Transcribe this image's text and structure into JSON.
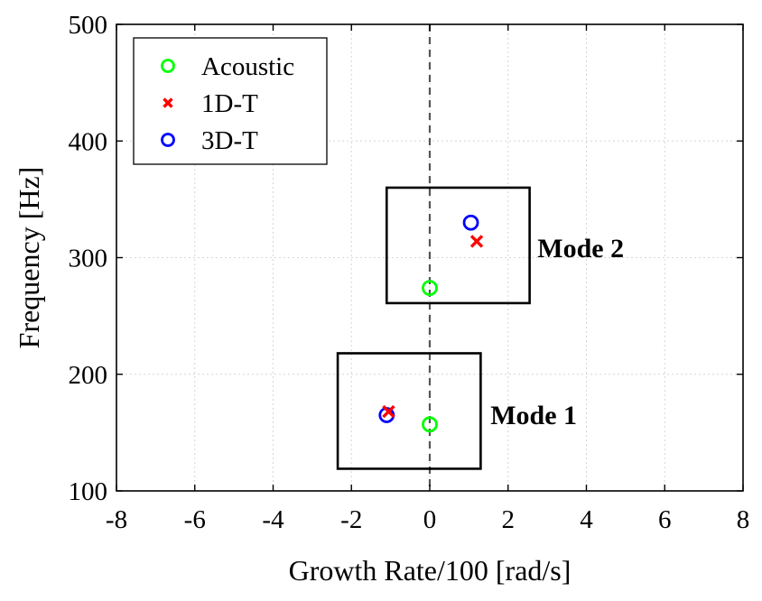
{
  "chart_data": {
    "type": "scatter",
    "title": "",
    "xlabel": "Growth Rate/100 [rad/s]",
    "ylabel": "Frequency [Hz]",
    "xlim": [
      -8,
      8
    ],
    "ylim": [
      100,
      500
    ],
    "xticks": [
      -8,
      -6,
      -4,
      -2,
      0,
      2,
      4,
      6,
      8
    ],
    "yticks": [
      100,
      200,
      300,
      400,
      500
    ],
    "grid": true,
    "legend_position": "top-left",
    "series": [
      {
        "name": "Acoustic",
        "marker": "circle",
        "color": "#00ff00",
        "x": [
          0,
          0
        ],
        "y": [
          157,
          274
        ]
      },
      {
        "name": "1D-T",
        "marker": "x",
        "color": "#ff0000",
        "x": [
          -1.05,
          1.2
        ],
        "y": [
          168,
          314
        ]
      },
      {
        "name": "3D-T",
        "marker": "circle",
        "color": "#0000ff",
        "x": [
          -1.1,
          1.05
        ],
        "y": [
          165,
          330
        ]
      }
    ],
    "annotations": [
      {
        "label": "Mode 1",
        "box": {
          "x": [
            -2.35,
            1.3
          ],
          "y": [
            119,
            218
          ]
        },
        "anchor": {
          "x": 1.55,
          "y": 165
        }
      },
      {
        "label": "Mode 2",
        "box": {
          "x": [
            -1.1,
            2.55
          ],
          "y": [
            261,
            360
          ]
        },
        "anchor": {
          "x": 2.75,
          "y": 308
        }
      }
    ],
    "reference_line": {
      "x": 0,
      "style": "dashed"
    }
  }
}
